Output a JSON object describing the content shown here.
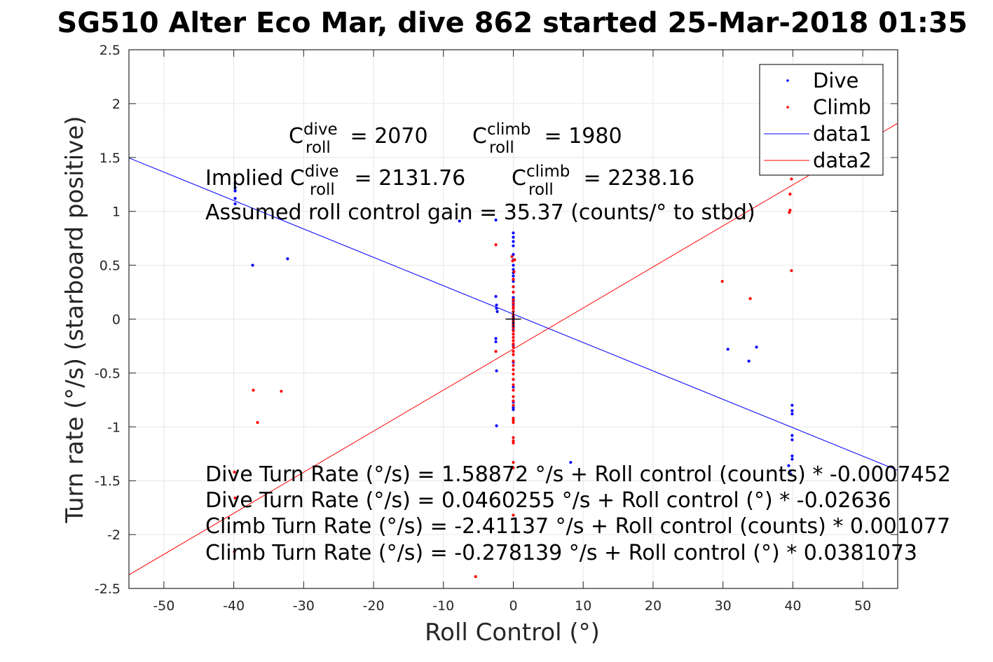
{
  "chart_data": {
    "type": "scatter",
    "title": "SG510 Alter Eco Mar, dive 862 started 25-Mar-2018 01:35",
    "xlabel": "Roll Control (°)",
    "ylabel": "Turn rate (°/s) (starboard positive)",
    "xlim": [
      -55,
      55
    ],
    "ylim": [
      -2.5,
      2.5
    ],
    "xticks": [
      -50,
      -40,
      -30,
      -20,
      -10,
      0,
      10,
      20,
      30,
      40,
      50
    ],
    "yticks": [
      -2.5,
      -2,
      -1.5,
      -1,
      -0.5,
      0,
      0.5,
      1,
      1.5,
      2,
      2.5
    ],
    "grid": true,
    "legend_position": "top-right",
    "legend": [
      "Dive",
      "Climb",
      "data1",
      "data2"
    ],
    "colors": {
      "dive": "#0000ff",
      "climb": "#ff0000",
      "axis": "#262626",
      "grid": "#e6e6e6"
    },
    "series": [
      {
        "name": "Dive",
        "marker": "point",
        "color": "#0000ff",
        "points": [
          [
            -39.8,
            1.26
          ],
          [
            -39.8,
            1.22
          ],
          [
            -39.8,
            1.19
          ],
          [
            -39.8,
            1.12
          ],
          [
            -39.8,
            1.07
          ],
          [
            -37.3,
            0.5
          ],
          [
            -32.3,
            0.56
          ],
          [
            -7.7,
            0.91
          ],
          [
            -2.5,
            0.92
          ],
          [
            -2.5,
            0.21
          ],
          [
            -2.4,
            0.13
          ],
          [
            -2.4,
            0.1
          ],
          [
            -2.3,
            0.07
          ],
          [
            -2.5,
            -0.18
          ],
          [
            -2.5,
            -0.21
          ],
          [
            -2.4,
            -0.48
          ],
          [
            -2.4,
            -0.99
          ],
          [
            0,
            0.8
          ],
          [
            0,
            0.76
          ],
          [
            0,
            0.72
          ],
          [
            0,
            0.68
          ],
          [
            0,
            0.6
          ],
          [
            0,
            0.55
          ],
          [
            0,
            0.5
          ],
          [
            0,
            0.46
          ],
          [
            0,
            0.43
          ],
          [
            0,
            0.4
          ],
          [
            0,
            0.35
          ],
          [
            0,
            0.3
          ],
          [
            0,
            0.25
          ],
          [
            0,
            0.2
          ],
          [
            0,
            0.17
          ],
          [
            0,
            0.14
          ],
          [
            0,
            0.1
          ],
          [
            0,
            0.07
          ],
          [
            0,
            0.04
          ],
          [
            0,
            0.02
          ],
          [
            0,
            0.0
          ],
          [
            0,
            -0.04
          ],
          [
            0,
            -0.07
          ],
          [
            0,
            -0.1
          ],
          [
            0,
            -0.14
          ],
          [
            0,
            -0.24
          ],
          [
            0,
            -0.4
          ],
          [
            0,
            -0.56
          ],
          [
            0,
            -0.63
          ],
          [
            0,
            -0.77
          ],
          [
            0,
            -0.82
          ],
          [
            0,
            -0.84
          ],
          [
            8.2,
            -1.33
          ],
          [
            30.7,
            -0.28
          ],
          [
            33.7,
            -0.39
          ],
          [
            34.8,
            -0.26
          ],
          [
            39.9,
            -0.8
          ],
          [
            39.9,
            -0.85
          ],
          [
            39.9,
            -0.88
          ],
          [
            39.9,
            -1.08
          ],
          [
            39.9,
            -1.12
          ],
          [
            39.9,
            -1.27
          ],
          [
            39.9,
            -1.3
          ],
          [
            39.4,
            -1.36
          ],
          [
            39.6,
            -1.41
          ],
          [
            39.7,
            -1.44
          ]
        ]
      },
      {
        "name": "Climb",
        "marker": "point",
        "color": "#ff0000",
        "points": [
          [
            -37.2,
            -0.66
          ],
          [
            -33.2,
            -0.67
          ],
          [
            -36.6,
            -0.96
          ],
          [
            -39.9,
            -1.42
          ],
          [
            -39.8,
            -1.66
          ],
          [
            -39.9,
            -2.16
          ],
          [
            -2.5,
            0.69
          ],
          [
            -2.5,
            -0.3
          ],
          [
            -5.4,
            -2.39
          ],
          [
            -0.2,
            0.58
          ],
          [
            -0.1,
            0.54
          ],
          [
            0.2,
            0.55
          ],
          [
            0.1,
            0.44
          ],
          [
            0,
            0.37
          ],
          [
            0,
            0.3
          ],
          [
            0,
            0.25
          ],
          [
            0,
            0.18
          ],
          [
            0,
            0.15
          ],
          [
            0,
            0.12
          ],
          [
            0,
            0.1
          ],
          [
            0,
            0.07
          ],
          [
            0,
            0.04
          ],
          [
            0,
            0.01
          ],
          [
            0,
            -0.02
          ],
          [
            0,
            -0.05
          ],
          [
            0,
            -0.08
          ],
          [
            0,
            -0.11
          ],
          [
            0,
            -0.14
          ],
          [
            0,
            -0.17
          ],
          [
            0,
            -0.2
          ],
          [
            0,
            -0.23
          ],
          [
            0,
            -0.26
          ],
          [
            0,
            -0.3
          ],
          [
            0,
            -0.33
          ],
          [
            0,
            -0.39
          ],
          [
            0,
            -0.43
          ],
          [
            0,
            -0.47
          ],
          [
            0,
            -0.51
          ],
          [
            0,
            -0.56
          ],
          [
            0,
            -0.61
          ],
          [
            0,
            -0.66
          ],
          [
            0,
            -0.72
          ],
          [
            0,
            -0.76
          ],
          [
            0,
            -0.8
          ],
          [
            0,
            -0.92
          ],
          [
            0,
            -0.94
          ],
          [
            0,
            -0.96
          ],
          [
            0,
            -1.1
          ],
          [
            0,
            -1.13
          ],
          [
            0,
            -1.15
          ],
          [
            0,
            -1.33
          ],
          [
            0,
            -1.38
          ],
          [
            0,
            -1.82
          ],
          [
            29.9,
            0.35
          ],
          [
            33.9,
            0.19
          ],
          [
            39.8,
            1.3
          ],
          [
            39.6,
            1.16
          ],
          [
            39.6,
            1.01
          ],
          [
            39.5,
            0.99
          ],
          [
            39.8,
            0.45
          ]
        ]
      },
      {
        "name": "data1",
        "type": "line",
        "color": "#0000ff",
        "x": [
          -55,
          55
        ],
        "y": [
          1.4958,
          -1.4038
        ]
      },
      {
        "name": "data2",
        "type": "line",
        "color": "#ff0000",
        "x": [
          -55,
          55
        ],
        "y": [
          -2.3739,
          1.8179
        ]
      }
    ],
    "reference_marker": {
      "symbol": "+",
      "x": 0,
      "y": 0,
      "color": "#000000"
    },
    "annotations": {
      "c_row": [
        {
          "base": "C",
          "sup": "dive",
          "sub": "roll",
          "value": " = 2070"
        },
        {
          "base": "C",
          "sup": "climb",
          "sub": "roll",
          "value": " = 1980"
        }
      ],
      "implied_row": [
        {
          "prefix": "Implied C",
          "sup": "dive",
          "sub": "roll",
          "value": " = 2131.76"
        },
        {
          "base": "C",
          "sup": "climb",
          "sub": "roll",
          "value": " = 2238.16"
        }
      ],
      "gain_text": "Assumed roll control gain = 35.37 (counts/° to stbd)",
      "fit_lines": [
        "Dive Turn Rate (°/s) = 1.58872 °/s + Roll control (counts) * -0.0007452",
        "Dive Turn Rate (°/s) = 0.0460255 °/s + Roll control (°) * -0.02636",
        "Climb Turn Rate (°/s) = -2.41137 °/s + Roll control (counts) * 0.001077",
        "Climb Turn Rate (°/s) = -0.278139 °/s + Roll control (°) * 0.0381073"
      ]
    }
  }
}
